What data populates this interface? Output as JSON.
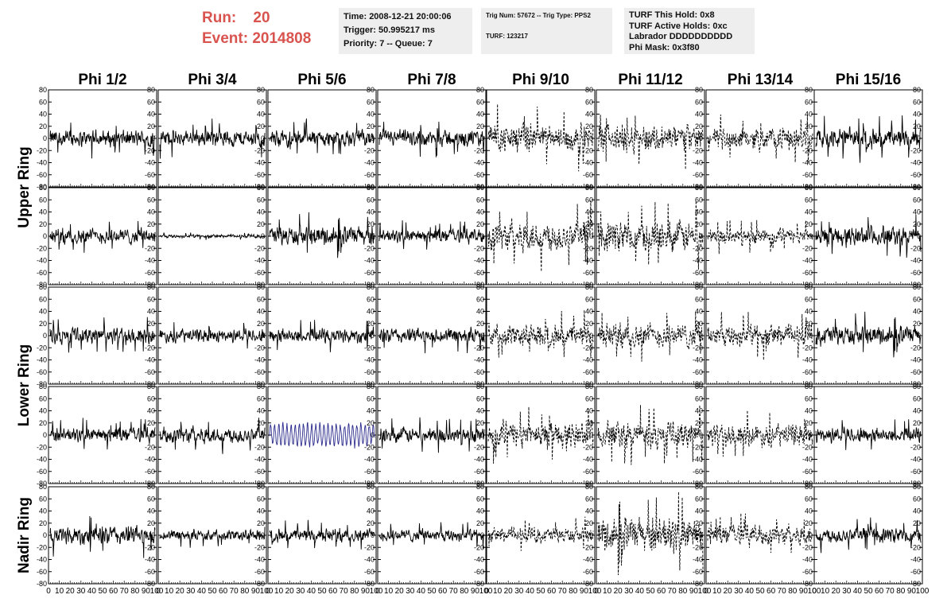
{
  "header": {
    "run_label": "Run:    20",
    "event_label": "Event: 2014808"
  },
  "info_box_1": {
    "time": "Time: 2008-12-21 20:00:06",
    "trigger": "Trigger: 50.995217 ms",
    "priority": "Priority: 7 -- Queue: 7"
  },
  "info_box_2": {
    "trig": "Trig Num: 57672 -- Trig Type: PPS2",
    "turf": "TURF: 123217"
  },
  "info_box_3": {
    "hold": "TURF This Hold: 0x8",
    "active": "TURF Active Holds: 0xc",
    "labrador": "Labrador DDDDDDDDDD",
    "mask": "Phi Mask: 0x3f80"
  },
  "colors": {
    "title_red": "#d9534f",
    "info_bg": "#eeeeee",
    "trace_black": "#000000",
    "trace_blue": "#2a2a8c"
  },
  "chart_data": {
    "type": "line",
    "column_labels": [
      "Phi 1/2",
      "Phi 3/4",
      "Phi 5/6",
      "Phi 7/8",
      "Phi 9/10",
      "Phi 11/12",
      "Phi 13/14",
      "Phi 15/16"
    ],
    "row_labels": [
      "Upper Ring",
      "Lower Ring",
      "Nadir Ring"
    ],
    "xlim": [
      0,
      100
    ],
    "ylim": [
      -80,
      80
    ],
    "x_tick_labels": [
      "0",
      "10",
      "20",
      "30",
      "40",
      "50",
      "60",
      "70",
      "80",
      "90",
      "100"
    ],
    "y_tick_labels": [
      "80",
      "60",
      "40",
      "20",
      "0",
      "-20",
      "-40",
      "-60",
      "-80"
    ],
    "panel_rows": 5,
    "row_groups": [
      [
        0,
        1
      ],
      [
        2,
        3
      ],
      [
        4
      ]
    ],
    "dashed_columns": [
      4,
      5,
      6
    ],
    "highlight_panel": {
      "row": 3,
      "col": 2,
      "color": "blue"
    },
    "amplitudes": [
      [
        15,
        15,
        15,
        15,
        25,
        25,
        20,
        18
      ],
      [
        14,
        3,
        18,
        12,
        28,
        28,
        14,
        18
      ],
      [
        15,
        12,
        14,
        14,
        20,
        22,
        20,
        18
      ],
      [
        13,
        15,
        18,
        14,
        25,
        25,
        20,
        14
      ],
      [
        18,
        10,
        12,
        11,
        14,
        33,
        18,
        14
      ]
    ]
  }
}
